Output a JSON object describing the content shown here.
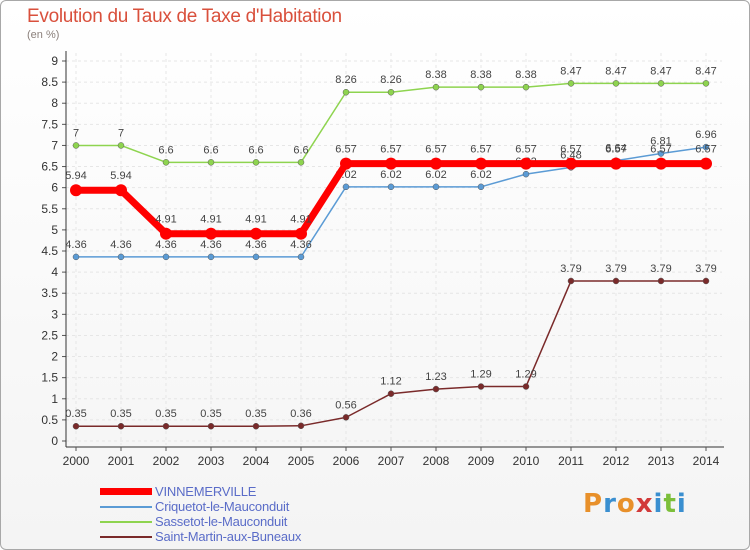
{
  "header": {
    "title": "Evolution du Taux de Taxe d'Habitation",
    "subtitle": "(en %)"
  },
  "logo": {
    "letters": [
      "P",
      "r",
      "o",
      "x",
      "i",
      "t",
      "i"
    ],
    "colors": [
      "#e8902a",
      "#3a8fd0",
      "#e8902a",
      "#d23a3a",
      "#3a8fd0",
      "#7cbf3a",
      "#3a8fd0"
    ]
  },
  "chart_data": {
    "type": "line",
    "x": [
      "2000",
      "2001",
      "2002",
      "2003",
      "2004",
      "2005",
      "2006",
      "2007",
      "2008",
      "2009",
      "2010",
      "2011",
      "2012",
      "2013",
      "2014"
    ],
    "ylim": [
      0,
      9
    ],
    "yticks": [
      "0",
      "0.5",
      "1",
      "1.5",
      "2",
      "2.5",
      "3",
      "3.5",
      "4",
      "4.5",
      "5",
      "5.5",
      "6",
      "6.5",
      "7",
      "7.5",
      "8",
      "8.5",
      "9"
    ],
    "grid": true,
    "legend_position": "bottom-left",
    "series": [
      {
        "name": "VINNEMERVILLE",
        "color": "#ff0000",
        "width": 7,
        "values": [
          5.94,
          5.94,
          4.91,
          4.91,
          4.91,
          4.91,
          6.57,
          6.57,
          6.57,
          6.57,
          6.57,
          6.57,
          6.57,
          6.57,
          6.57
        ],
        "labels": [
          "5.94",
          "5.94",
          "4.91",
          "4.91",
          "4.91",
          "4.91",
          "6.57",
          "6.57",
          "6.57",
          "6.57",
          "6.57",
          "6.57",
          "6.57",
          "6.57",
          "6.57"
        ]
      },
      {
        "name": "Criquetot-le-Mauconduit",
        "color": "#5b9bd5",
        "width": 1.5,
        "values": [
          4.36,
          4.36,
          4.36,
          4.36,
          4.36,
          4.36,
          6.02,
          6.02,
          6.02,
          6.02,
          6.32,
          6.48,
          6.64,
          6.81,
          6.96
        ],
        "labels": [
          "4.36",
          "4.36",
          "4.36",
          "4.36",
          "4.36",
          "4.36",
          "6.02",
          "6.02",
          "6.02",
          "6.02",
          "6.32",
          "6.48",
          "6.64",
          "6.81",
          "6.96"
        ]
      },
      {
        "name": "Sassetot-le-Mauconduit",
        "color": "#8ed44f",
        "width": 1.5,
        "values": [
          7,
          7,
          6.6,
          6.6,
          6.6,
          6.6,
          8.26,
          8.26,
          8.38,
          8.38,
          8.38,
          8.47,
          8.47,
          8.47,
          8.47
        ],
        "labels": [
          "7",
          "7",
          "6.6",
          "6.6",
          "6.6",
          "6.6",
          "8.26",
          "8.26",
          "8.38",
          "8.38",
          "8.38",
          "8.47",
          "8.47",
          "8.47",
          "8.47"
        ]
      },
      {
        "name": "Saint-Martin-aux-Buneaux",
        "color": "#7a2a2a",
        "width": 1.5,
        "values": [
          0.35,
          0.35,
          0.35,
          0.35,
          0.35,
          0.36,
          0.56,
          1.12,
          1.23,
          1.29,
          1.29,
          3.79,
          3.79,
          3.79,
          3.79
        ],
        "labels": [
          "0.35",
          "0.35",
          "0.35",
          "0.35",
          "0.35",
          "0.36",
          "0.56",
          "1.12",
          "1.23",
          "1.29",
          "1.29",
          "3.79",
          "3.79",
          "3.79",
          "3.79"
        ]
      }
    ]
  },
  "legend": {
    "items": [
      {
        "label": "VINNEMERVILLE",
        "color": "#ff0000",
        "width": 7
      },
      {
        "label": "Criquetot-le-Mauconduit",
        "color": "#5b9bd5",
        "width": 2
      },
      {
        "label": "Sassetot-le-Mauconduit",
        "color": "#8ed44f",
        "width": 2
      },
      {
        "label": "Saint-Martin-aux-Buneaux",
        "color": "#7a2a2a",
        "width": 2
      }
    ]
  }
}
